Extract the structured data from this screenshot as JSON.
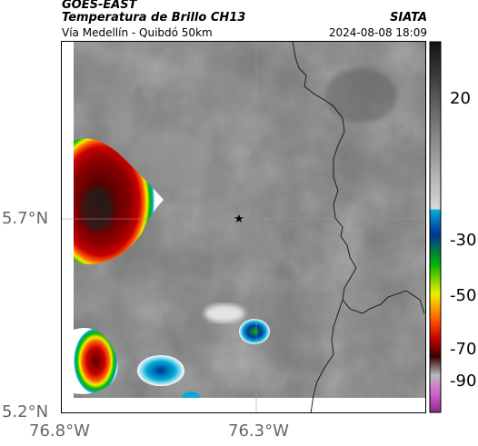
{
  "header": {
    "satellite": "GOES-EAST",
    "product": "Temperatura de Brillo CH13",
    "region": "Vía Medellín - Quibdó 50km",
    "org": "SIATA",
    "datetime": "2024-08-08 18:09"
  },
  "map": {
    "lat_ticks": [
      "5.7°N",
      "5.2°N"
    ],
    "lon_ticks": [
      "76.8°W",
      "76.3°W"
    ],
    "marker": "star-marker",
    "base_color": "#7c7c7c"
  },
  "colorbar": {
    "labels": [
      "20",
      "-30",
      "-50",
      "-70",
      "-90"
    ],
    "colors": [
      "#111111",
      "#bdbdbd",
      "#ffffff",
      "#00aad4",
      "#003399",
      "#00b400",
      "#f0f000",
      "#ff5a00",
      "#9a0000",
      "#3a0000",
      "#bbbbbb",
      "#b03ab0"
    ]
  }
}
